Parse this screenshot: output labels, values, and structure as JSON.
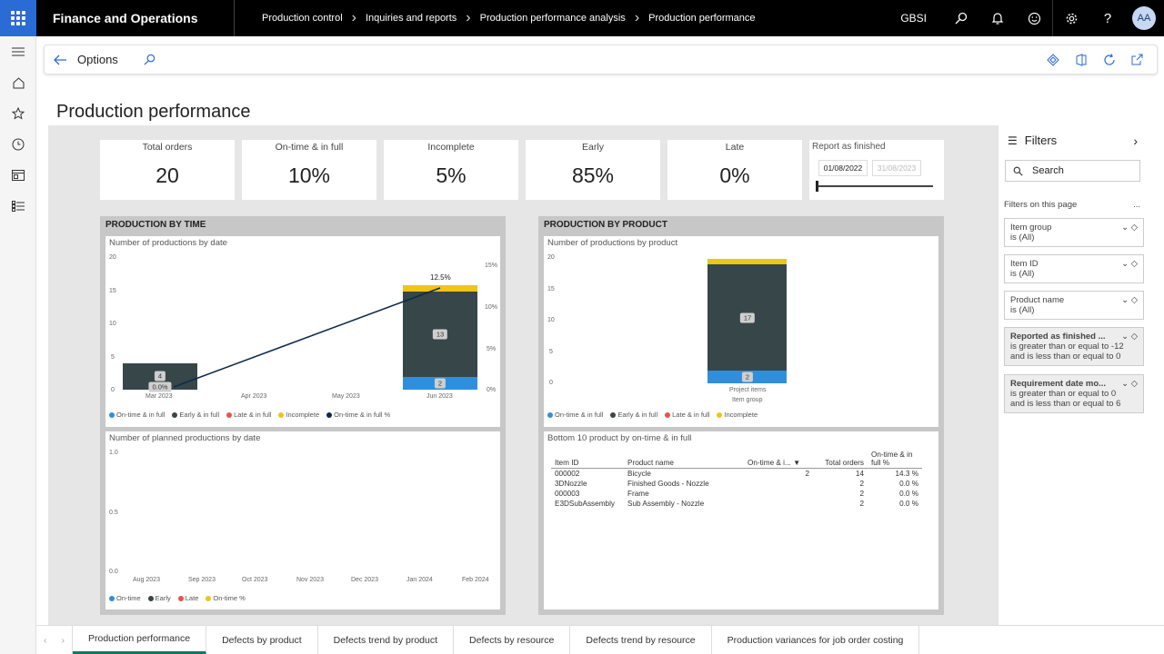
{
  "app": {
    "title": "Finance and Operations",
    "company": "GBSI",
    "user_initials": "AA"
  },
  "breadcrumbs": [
    "Production control",
    "Inquiries and reports",
    "Production performance analysis",
    "Production performance"
  ],
  "actionbar": {
    "options_label": "Options"
  },
  "page": {
    "title": "Production performance"
  },
  "kpis": [
    {
      "label": "Total orders",
      "value": "20"
    },
    {
      "label": "On-time & in full",
      "value": "10%"
    },
    {
      "label": "Incomplete",
      "value": "5%"
    },
    {
      "label": "Early",
      "value": "85%"
    },
    {
      "label": "Late",
      "value": "0%"
    }
  ],
  "report_finished": {
    "label": "Report as finished",
    "from": "01/08/2022",
    "to": "31/08/2023"
  },
  "panels": {
    "by_time": "PRODUCTION BY TIME",
    "by_product": "PRODUCTION BY PRODUCT"
  },
  "colors": {
    "ontime": "#2f8fdc",
    "early": "#374649",
    "late": "#e8534b",
    "incomplete": "#f0c419",
    "ontime_pct": "#0c2b4b",
    "accent": "#117865"
  },
  "chart_data": [
    {
      "type": "bar",
      "title": "Number of productions by date",
      "categories": [
        "Mar 2023",
        "Apr 2023",
        "May 2023",
        "Jun 2023"
      ],
      "series": [
        {
          "name": "On-time & in full",
          "values": [
            0,
            0,
            0,
            2
          ]
        },
        {
          "name": "Early & in full",
          "values": [
            4,
            0,
            0,
            13
          ]
        },
        {
          "name": "Late & in full",
          "values": [
            0,
            0,
            0,
            0
          ]
        },
        {
          "name": "Incomplete",
          "values": [
            0,
            0,
            0,
            1
          ]
        },
        {
          "name": "On-time & in full %",
          "values": [
            0,
            null,
            null,
            12.5
          ],
          "axis": "right"
        }
      ],
      "data_labels": [
        "4",
        "0.0%",
        "13",
        "2",
        "12.5%"
      ],
      "y_ticks": [
        "0",
        "5",
        "10",
        "15",
        "20"
      ],
      "y2_ticks": [
        "0%",
        "5%",
        "10%",
        "15%"
      ],
      "ylim": [
        0,
        20
      ],
      "y2lim": [
        0,
        16
      ]
    },
    {
      "type": "line",
      "title": "Number of planned productions by date",
      "categories": [
        "Aug 2023",
        "Sep 2023",
        "Oct 2023",
        "Nov 2023",
        "Dec 2023",
        "Jan 2024",
        "Feb 2024"
      ],
      "series_names": [
        "On-time",
        "Early",
        "Late",
        "On-time %"
      ],
      "y_ticks": [
        "0.0",
        "0.5",
        "1.0"
      ],
      "ylim": [
        0,
        1
      ]
    },
    {
      "type": "bar",
      "title": "Number of productions by product",
      "categories": [
        "Project items"
      ],
      "xlabel": "Item group",
      "series": [
        {
          "name": "On-time & in full",
          "values": [
            2
          ]
        },
        {
          "name": "Early & in full",
          "values": [
            17
          ]
        },
        {
          "name": "Late & in full",
          "values": [
            0
          ]
        },
        {
          "name": "Incomplete",
          "values": [
            1
          ]
        }
      ],
      "data_labels": [
        "17",
        "2"
      ],
      "y_ticks": [
        "0",
        "5",
        "10",
        "15",
        "20"
      ],
      "ylim": [
        0,
        20
      ]
    },
    {
      "type": "table",
      "title": "Bottom 10 product by on-time & in full",
      "columns": [
        "Item ID",
        "Product name",
        "On-time & i...",
        "Total orders",
        "On-time & in full %"
      ],
      "rows": [
        [
          "000002",
          "Bicycle",
          "2",
          "14",
          "14.3 %"
        ],
        [
          "3DNozzle",
          "Finished Goods - Nozzle",
          "",
          "2",
          "0.0 %"
        ],
        [
          "000003",
          "Frame",
          "",
          "2",
          "0.0 %"
        ],
        [
          "E3DSubAssembly",
          "Sub Assembly - Nozzle",
          "",
          "2",
          "0.0 %"
        ]
      ]
    }
  ],
  "filters": {
    "title": "Filters",
    "search_placeholder": "Search",
    "section": "Filters on this page",
    "section_more": "...",
    "items": [
      {
        "name": "Item group",
        "value": "is (All)"
      },
      {
        "name": "Item ID",
        "value": "is (All)"
      },
      {
        "name": "Product name",
        "value": "is (All)"
      },
      {
        "name": "Reported as finished ...",
        "line1": "is greater than or equal to -12",
        "line2": "and is less than or equal to 0"
      },
      {
        "name": "Requirement date mo...",
        "line1": "is greater than or equal to 0",
        "line2": "and is less than or equal to 6"
      }
    ]
  },
  "tabs": [
    "Production performance",
    "Defects by product",
    "Defects trend by product",
    "Defects by resource",
    "Defects trend by resource",
    "Production variances for job order costing"
  ]
}
